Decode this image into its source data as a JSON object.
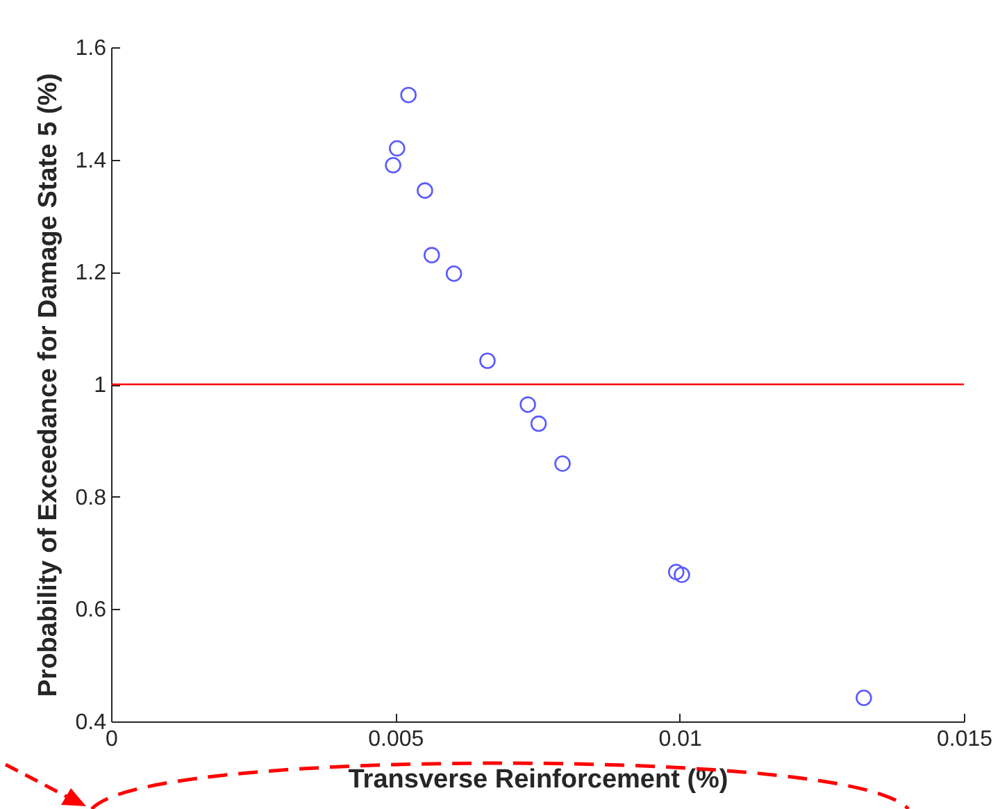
{
  "chart_data": {
    "type": "scatter",
    "xlabel": "Transverse Reinforcement (%)",
    "ylabel": "Probability of Exceedance for Damage State 5 (%)",
    "x": [
      0.00496,
      0.00503,
      0.00523,
      0.00552,
      0.00564,
      0.00603,
      0.00662,
      0.00733,
      0.00752,
      0.00794,
      0.00994,
      0.01004,
      0.01324
    ],
    "series": [
      {
        "color": "#5a5aff",
        "values": [
          1.39,
          1.42,
          1.515,
          1.345,
          1.23,
          1.197,
          1.042,
          0.964,
          0.93,
          0.859,
          0.666,
          0.661,
          0.442
        ]
      }
    ],
    "marker": "circle",
    "xlim": [
      0,
      0.015
    ],
    "xticks": [
      0,
      0.005,
      0.01,
      0.015
    ],
    "ylim": [
      0.4,
      1.6
    ],
    "yticks": [
      0.4,
      0.6,
      0.8,
      1,
      1.2,
      1.4,
      1.6
    ],
    "ref_lines": [
      {
        "axis": "y",
        "value": 1,
        "color": "#ff0000"
      }
    ],
    "grid": false
  }
}
